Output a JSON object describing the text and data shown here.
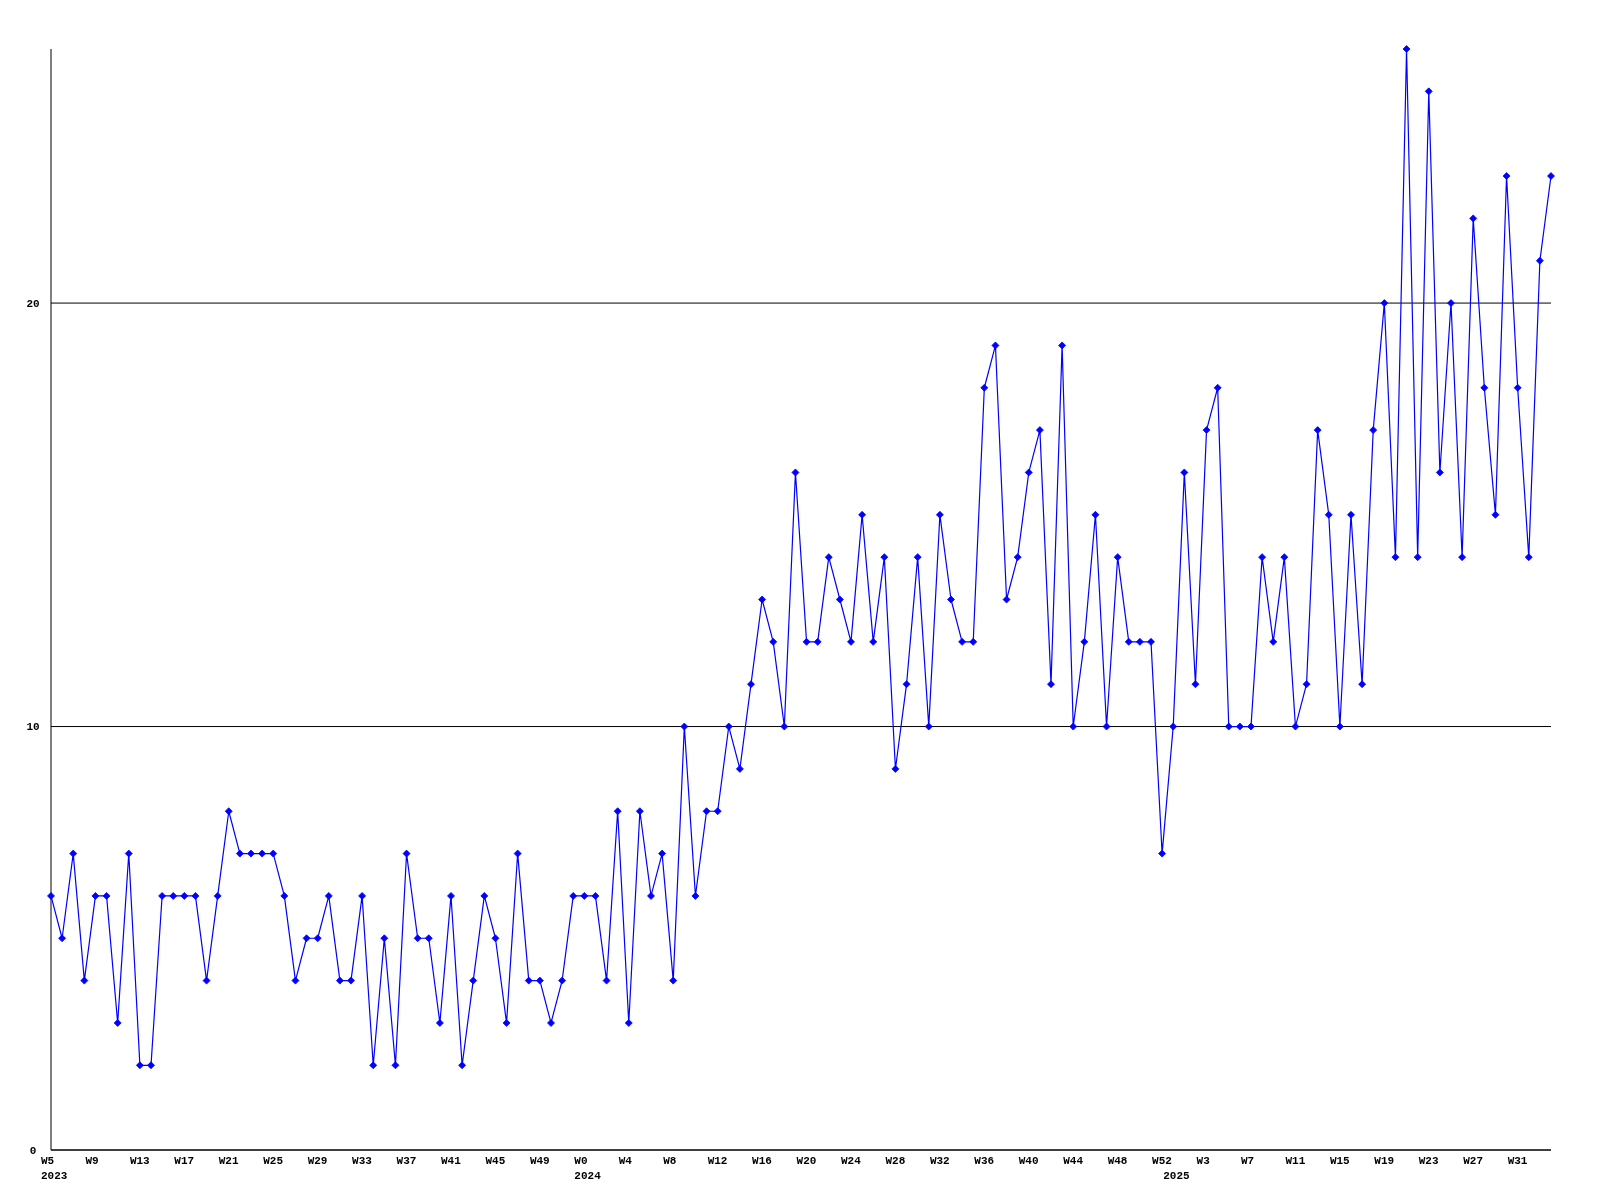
{
  "chart_data": {
    "type": "line",
    "categories": [
      "W5\n2023",
      null,
      null,
      null,
      "W9",
      null,
      null,
      null,
      "W13",
      null,
      null,
      null,
      "W17",
      null,
      null,
      null,
      "W21",
      null,
      null,
      null,
      "W25",
      null,
      null,
      null,
      "W29",
      null,
      null,
      null,
      "W33",
      null,
      null,
      null,
      "W37",
      null,
      null,
      null,
      "W41",
      null,
      null,
      null,
      "W45",
      null,
      null,
      null,
      "W49",
      null,
      null,
      null,
      "W0\n2024",
      null,
      null,
      null,
      "W4",
      null,
      null,
      null,
      "W8",
      null,
      null,
      null,
      "W12",
      null,
      null,
      null,
      "W16",
      null,
      null,
      null,
      "W20",
      null,
      null,
      null,
      "W24",
      null,
      null,
      null,
      "W28",
      null,
      null,
      null,
      "W32",
      null,
      null,
      null,
      "W36",
      null,
      null,
      null,
      "W40",
      null,
      null,
      null,
      "W44",
      null,
      null,
      null,
      "W48",
      null,
      null,
      null,
      "W52",
      "\n2025",
      null,
      null,
      "W3",
      null,
      null,
      null,
      "W7",
      null,
      null,
      null,
      "W11",
      null,
      null,
      null,
      "W15",
      null,
      null,
      null,
      "W19",
      null,
      null,
      null,
      "W23",
      null,
      null,
      null,
      "W27",
      null,
      null,
      null,
      "W31",
      null,
      null,
      null
    ],
    "series": [
      {
        "color": "#0000ff",
        "values": [
          6,
          5,
          7,
          4,
          6,
          6,
          3,
          7,
          2,
          2,
          6,
          6,
          6,
          6,
          4,
          6,
          8,
          7,
          7,
          7,
          7,
          6,
          4,
          5,
          5,
          6,
          4,
          4,
          6,
          2,
          5,
          2,
          7,
          5,
          5,
          3,
          6,
          2,
          4,
          6,
          5,
          3,
          7,
          4,
          4,
          3,
          4,
          6,
          6,
          6,
          4,
          8,
          3,
          8,
          6,
          7,
          4,
          10,
          6,
          8,
          8,
          10,
          9,
          11,
          13,
          12,
          10,
          16,
          12,
          12,
          14,
          13,
          12,
          15,
          12,
          14,
          9,
          11,
          14,
          10,
          15,
          13,
          12,
          12,
          18,
          19,
          13,
          14,
          16,
          17,
          11,
          19,
          10,
          12,
          15,
          10,
          14,
          12,
          12,
          12,
          7,
          10,
          16,
          11,
          17,
          18,
          10,
          10,
          10,
          14,
          12,
          14,
          10,
          11,
          17,
          15,
          10,
          15,
          11,
          17,
          20,
          14,
          26,
          14,
          25,
          16,
          20,
          14,
          22,
          18,
          15,
          23,
          18,
          14,
          21,
          23
        ]
      }
    ],
    "ylim": [
      0,
      26
    ],
    "yticks": [
      0,
      10,
      20
    ],
    "grid": "y",
    "marker": "diamond",
    "line_style": "solid"
  }
}
